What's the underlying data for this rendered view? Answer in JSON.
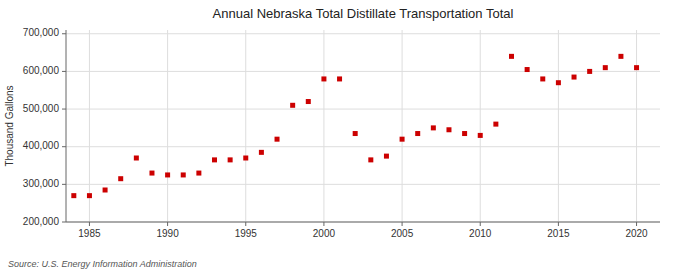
{
  "chart_data": {
    "type": "scatter",
    "title": "Annual Nebraska Total Distillate Transportation Total",
    "ylabel": "Thousand Gallons",
    "annotations": [
      "Source: U.S. Energy Information Administration"
    ],
    "x": [
      1984,
      1985,
      1986,
      1987,
      1988,
      1989,
      1990,
      1991,
      1992,
      1993,
      1994,
      1995,
      1996,
      1997,
      1998,
      1999,
      2000,
      2001,
      2002,
      2003,
      2004,
      2005,
      2006,
      2007,
      2008,
      2009,
      2010,
      2011,
      2012,
      2013,
      2014,
      2015,
      2016,
      2017,
      2018,
      2019,
      2020
    ],
    "values": [
      270000,
      270000,
      285000,
      315000,
      370000,
      330000,
      325000,
      325000,
      330000,
      365000,
      365000,
      370000,
      385000,
      420000,
      510000,
      520000,
      580000,
      580000,
      435000,
      365000,
      375000,
      420000,
      435000,
      450000,
      445000,
      435000,
      430000,
      460000,
      640000,
      605000,
      580000,
      570000,
      585000,
      600000,
      610000,
      640000,
      610000
    ],
    "color": "#cc0000",
    "marker": "square",
    "xlim": [
      1983.5,
      2021.5
    ],
    "ylim": [
      200000,
      710000
    ],
    "xticks": [
      1985,
      1990,
      1995,
      2000,
      2005,
      2010,
      2015,
      2020
    ],
    "yticks": [
      {
        "value": 200000,
        "label": "200,000"
      },
      {
        "value": 300000,
        "label": "300,000"
      },
      {
        "value": 400000,
        "label": "400,000"
      },
      {
        "value": 500000,
        "label": "500,000"
      },
      {
        "value": 600000,
        "label": "600,000"
      },
      {
        "value": 700000,
        "label": "700,000"
      }
    ],
    "grid": true
  }
}
